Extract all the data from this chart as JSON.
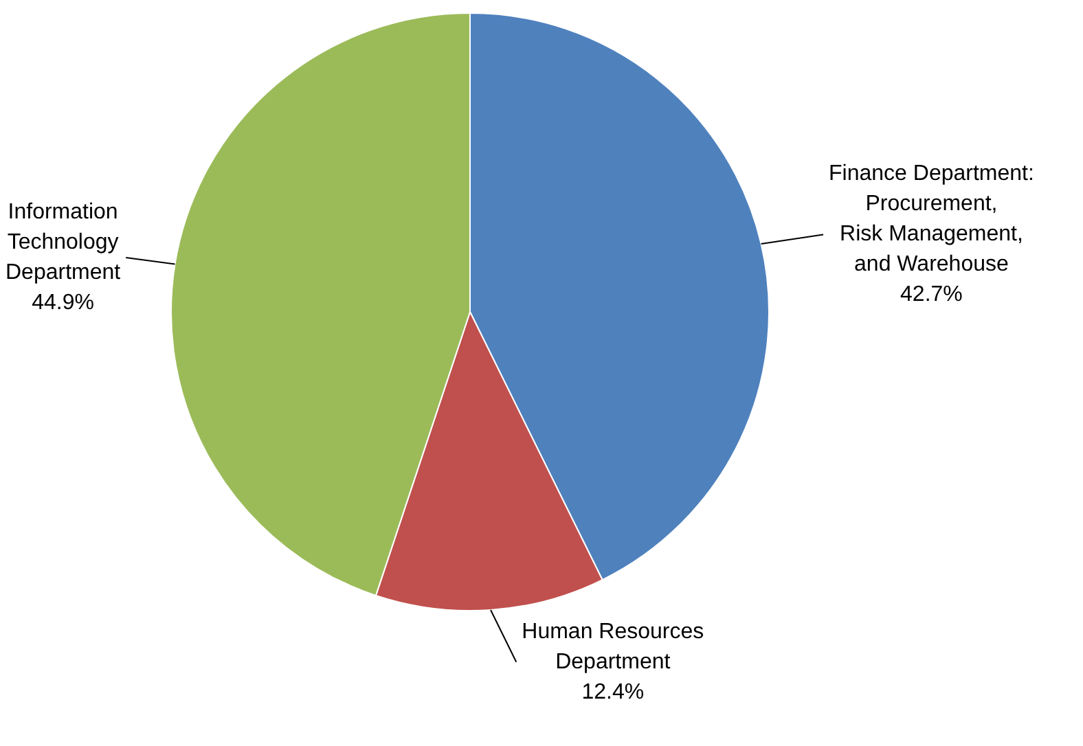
{
  "chart_data": {
    "type": "pie",
    "categories": [
      "Finance Department:\nProcurement,\nRisk Management,\nand Warehouse",
      "Human Resources\nDepartment",
      "Information\nTechnology\nDepartment"
    ],
    "values": [
      42.7,
      12.4,
      44.9
    ],
    "colors": [
      "#4f81bd",
      "#c0504d",
      "#9bbb59"
    ],
    "value_labels": [
      "42.7%",
      "12.4%",
      "44.9%"
    ],
    "legend": false
  }
}
